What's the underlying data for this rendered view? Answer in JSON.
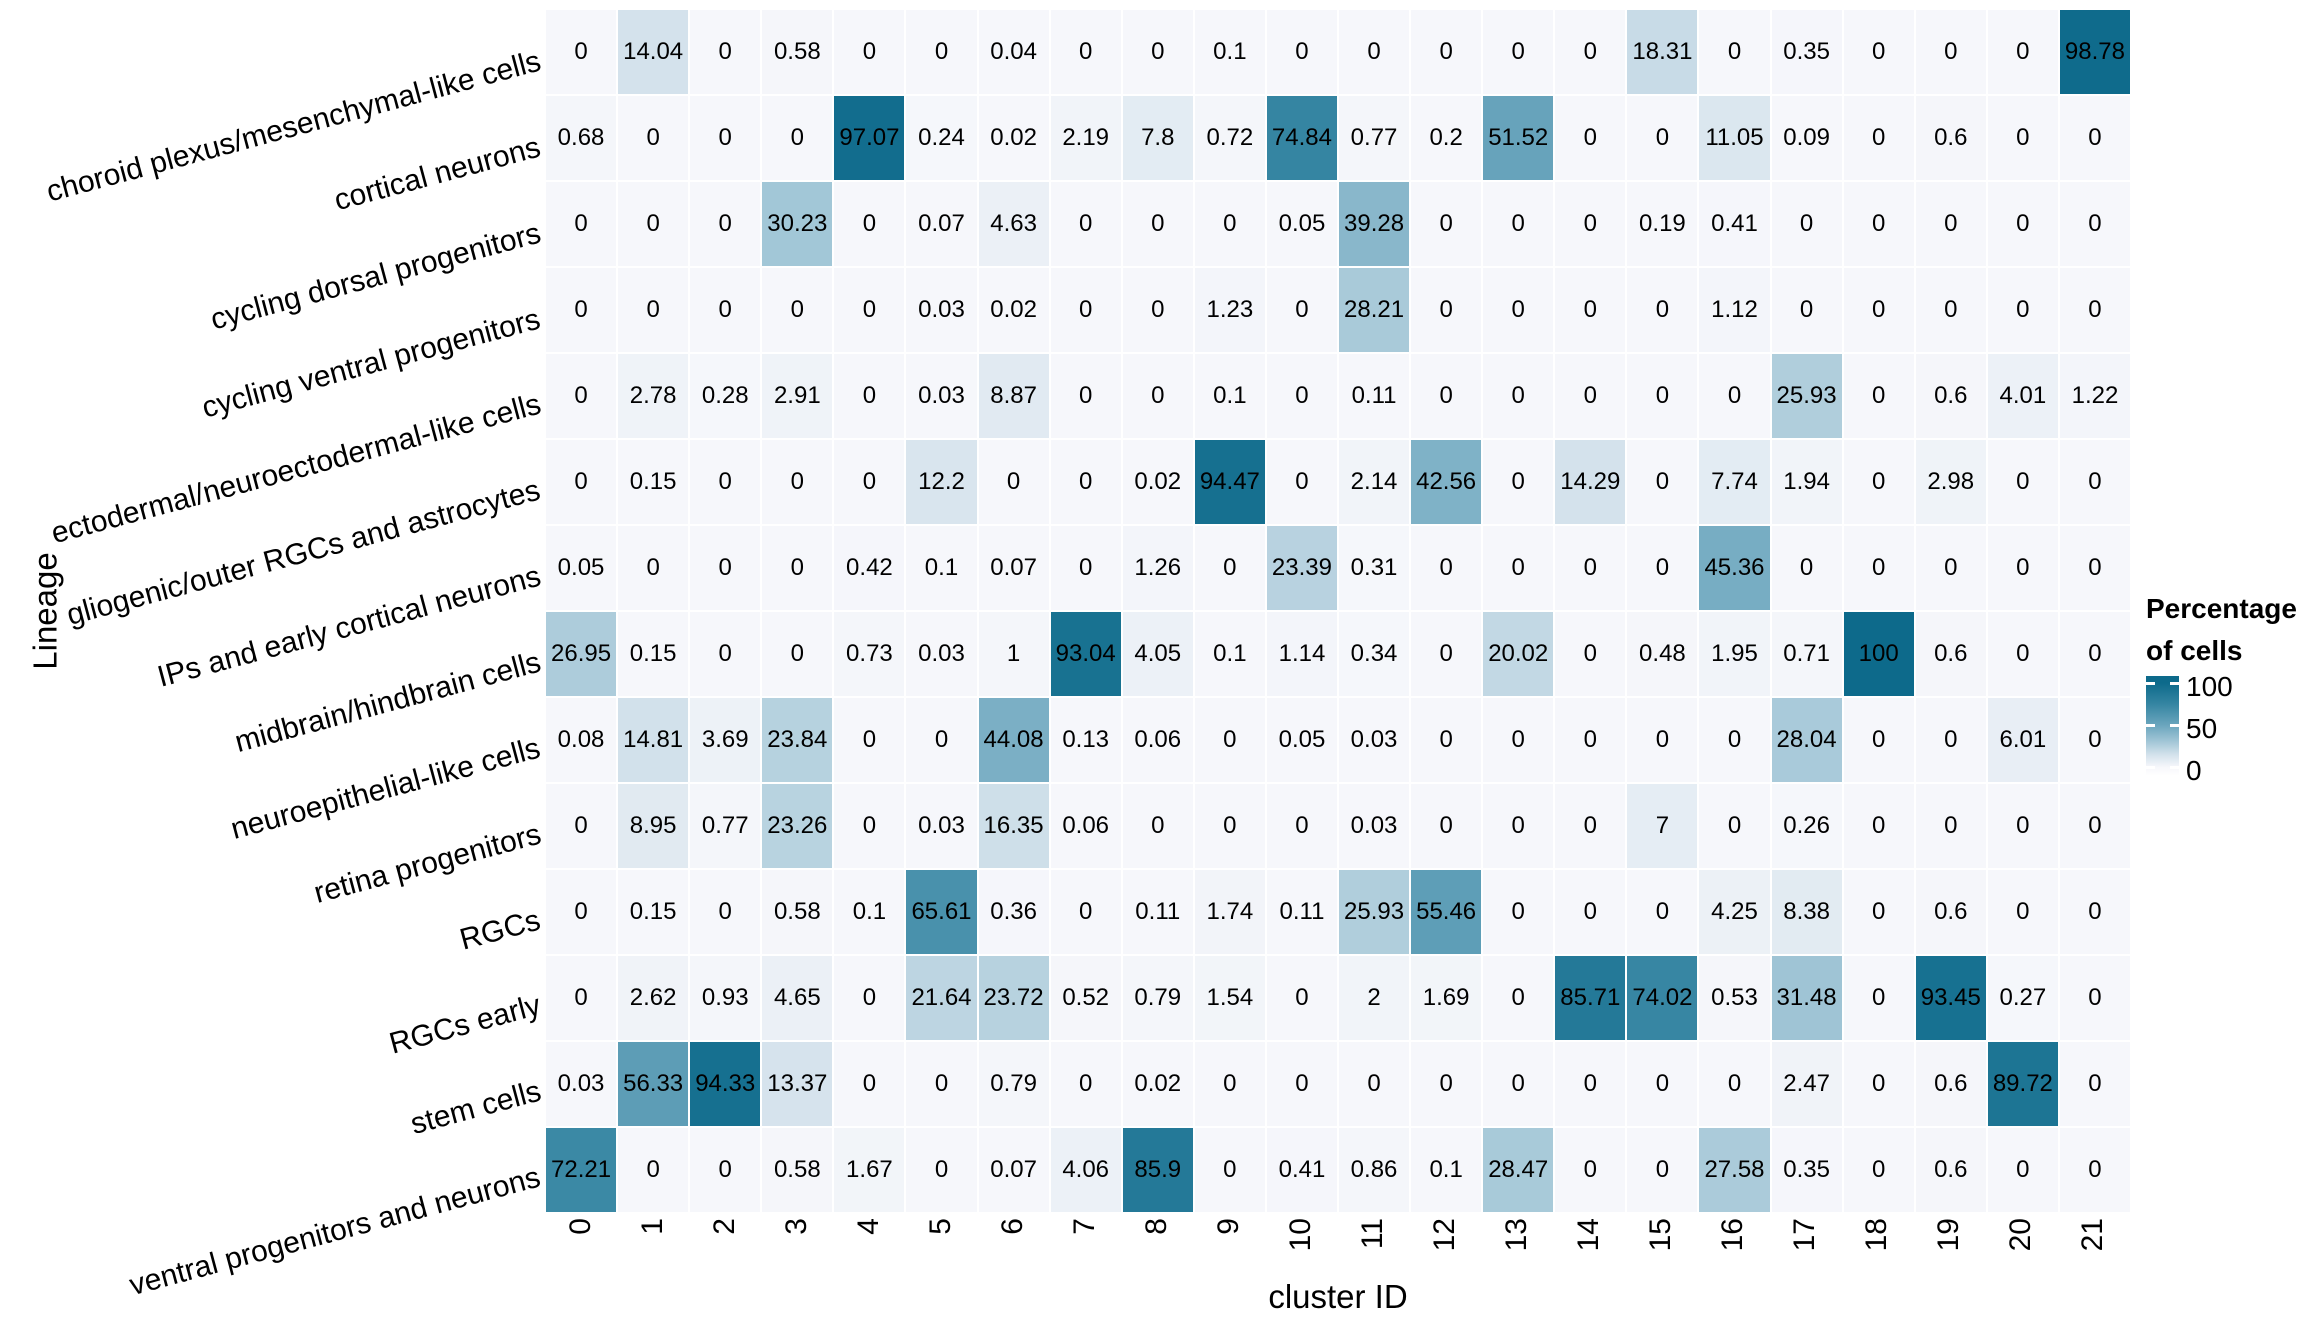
{
  "chart_data": {
    "type": "heatmap",
    "title": "",
    "xlabel": "cluster ID",
    "ylabel": "Lineage",
    "x_categories": [
      "0",
      "1",
      "2",
      "3",
      "4",
      "5",
      "6",
      "7",
      "8",
      "9",
      "10",
      "11",
      "12",
      "13",
      "14",
      "15",
      "16",
      "17",
      "18",
      "19",
      "20",
      "21"
    ],
    "rows": [
      {
        "lineage": "choroid plexus/mesenchymal-like cells",
        "values": [
          0,
          14.04,
          0,
          0.58,
          0,
          0,
          0.04,
          0,
          0,
          0.1,
          0,
          0,
          0,
          0,
          0,
          18.31,
          0,
          0.35,
          0,
          0,
          0,
          98.78
        ]
      },
      {
        "lineage": "cortical neurons",
        "values": [
          0.68,
          0,
          0,
          0,
          97.07,
          0.24,
          0.02,
          2.19,
          7.8,
          0.72,
          74.84,
          0.77,
          0.2,
          51.52,
          0,
          0,
          11.05,
          0.09,
          0,
          0.6,
          0,
          0
        ]
      },
      {
        "lineage": "cycling dorsal progenitors",
        "values": [
          0,
          0,
          0,
          30.23,
          0,
          0.07,
          4.63,
          0,
          0,
          0,
          0.05,
          39.28,
          0,
          0,
          0,
          0.19,
          0.41,
          0,
          0,
          0,
          0,
          0
        ]
      },
      {
        "lineage": "cycling ventral progenitors",
        "values": [
          0,
          0,
          0,
          0,
          0,
          0.03,
          0.02,
          0,
          0,
          1.23,
          0,
          28.21,
          0,
          0,
          0,
          0,
          1.12,
          0,
          0,
          0,
          0,
          0
        ]
      },
      {
        "lineage": "ectodermal/neuroectodermal-like cells",
        "values": [
          0,
          2.78,
          0.28,
          2.91,
          0,
          0.03,
          8.87,
          0,
          0,
          0.1,
          0,
          0.11,
          0,
          0,
          0,
          0,
          0,
          25.93,
          0,
          0.6,
          4.01,
          1.22
        ]
      },
      {
        "lineage": "gliogenic/outer RGCs and astrocytes",
        "values": [
          0,
          0.15,
          0,
          0,
          0,
          12.2,
          0,
          0,
          0.02,
          94.47,
          0,
          2.14,
          42.56,
          0,
          14.29,
          0,
          7.74,
          1.94,
          0,
          2.98,
          0,
          0
        ]
      },
      {
        "lineage": "IPs and early cortical neurons",
        "values": [
          0.05,
          0,
          0,
          0,
          0.42,
          0.1,
          0.07,
          0,
          1.26,
          0,
          23.39,
          0.31,
          0,
          0,
          0,
          0,
          45.36,
          0,
          0,
          0,
          0,
          0
        ]
      },
      {
        "lineage": "midbrain/hindbrain cells",
        "values": [
          26.95,
          0.15,
          0,
          0,
          0.73,
          0.03,
          1,
          93.04,
          4.05,
          0.1,
          1.14,
          0.34,
          0,
          20.02,
          0,
          0.48,
          1.95,
          0.71,
          100,
          0.6,
          0,
          0
        ]
      },
      {
        "lineage": "neuroepithelial-like cells",
        "values": [
          0.08,
          14.81,
          3.69,
          23.84,
          0,
          0,
          44.08,
          0.13,
          0.06,
          0,
          0.05,
          0.03,
          0,
          0,
          0,
          0,
          0,
          28.04,
          0,
          0,
          6.01,
          0
        ]
      },
      {
        "lineage": "retina progenitors",
        "values": [
          0,
          8.95,
          0.77,
          23.26,
          0,
          0.03,
          16.35,
          0.06,
          0,
          0,
          0,
          0.03,
          0,
          0,
          0,
          7,
          0,
          0.26,
          0,
          0,
          0,
          0
        ]
      },
      {
        "lineage": "RGCs",
        "values": [
          0,
          0.15,
          0,
          0.58,
          0.1,
          65.61,
          0.36,
          0,
          0.11,
          1.74,
          0.11,
          25.93,
          55.46,
          0,
          0,
          0,
          4.25,
          8.38,
          0,
          0.6,
          0,
          0
        ]
      },
      {
        "lineage": "RGCs early",
        "values": [
          0,
          2.62,
          0.93,
          4.65,
          0,
          21.64,
          23.72,
          0.52,
          0.79,
          1.54,
          0,
          2,
          1.69,
          0,
          85.71,
          74.02,
          0.53,
          31.48,
          0,
          93.45,
          0.27,
          0
        ]
      },
      {
        "lineage": "stem cells",
        "values": [
          0.03,
          56.33,
          94.33,
          13.37,
          0,
          0,
          0.79,
          0,
          0.02,
          0,
          0,
          0,
          0,
          0,
          0,
          0,
          0,
          2.47,
          0,
          0.6,
          89.72,
          0
        ]
      },
      {
        "lineage": "ventral progenitors and neurons",
        "values": [
          72.21,
          0,
          0,
          0.58,
          1.67,
          0,
          0.07,
          4.06,
          85.9,
          0,
          0.41,
          0.86,
          0.1,
          28.47,
          0,
          0,
          27.58,
          0.35,
          0,
          0.6,
          0,
          0
        ]
      }
    ],
    "legend": {
      "title_line1": "Percentage",
      "title_line2": "of cells",
      "ticks": [
        "100",
        "50",
        "0"
      ],
      "tick_values": [
        100,
        50,
        0
      ]
    },
    "color_scale": [
      {
        "value": 0,
        "color": "#f6f7fb"
      },
      {
        "value": 15,
        "color": "#d2e1eb"
      },
      {
        "value": 30,
        "color": "#a3c7d7"
      },
      {
        "value": 50,
        "color": "#6aa5bd"
      },
      {
        "value": 75,
        "color": "#3585a2"
      },
      {
        "value": 100,
        "color": "#0d6a8b"
      }
    ],
    "grid_line_color": "#ffffff",
    "text_color": "#000000",
    "background": "#ffffff",
    "axis_ranges": {
      "value_min": 0,
      "value_max": 100
    },
    "legend_position": "right"
  }
}
